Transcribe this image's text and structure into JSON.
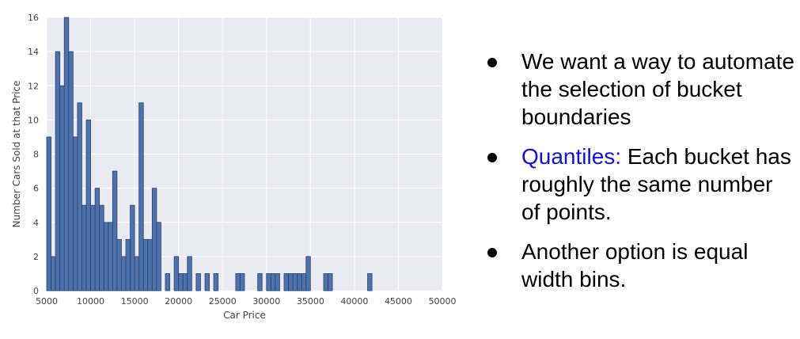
{
  "chart_data": {
    "type": "bar",
    "xlabel": "Car Price",
    "ylabel": "Number Cars Sold at that Price",
    "xlim": [
      5000,
      50000
    ],
    "ylim": [
      0,
      16
    ],
    "xticks": [
      5000,
      10000,
      15000,
      20000,
      25000,
      30000,
      35000,
      40000,
      45000,
      50000
    ],
    "yticks": [
      0,
      2,
      4,
      6,
      8,
      10,
      12,
      14,
      16
    ],
    "grid": true,
    "bin_width": 500,
    "bar_color": "#4c72b0",
    "background_color": "#eaeaf2",
    "bins": [
      {
        "x": 5000,
        "count": 9
      },
      {
        "x": 5500,
        "count": 2
      },
      {
        "x": 6000,
        "count": 14
      },
      {
        "x": 6500,
        "count": 12
      },
      {
        "x": 7000,
        "count": 16
      },
      {
        "x": 7500,
        "count": 14
      },
      {
        "x": 8000,
        "count": 9
      },
      {
        "x": 8500,
        "count": 11
      },
      {
        "x": 9000,
        "count": 5
      },
      {
        "x": 9500,
        "count": 10
      },
      {
        "x": 10000,
        "count": 5
      },
      {
        "x": 10500,
        "count": 6
      },
      {
        "x": 11000,
        "count": 5
      },
      {
        "x": 11500,
        "count": 4
      },
      {
        "x": 12000,
        "count": 4
      },
      {
        "x": 12500,
        "count": 7
      },
      {
        "x": 13000,
        "count": 3
      },
      {
        "x": 13500,
        "count": 2
      },
      {
        "x": 14000,
        "count": 3
      },
      {
        "x": 14500,
        "count": 5
      },
      {
        "x": 15000,
        "count": 2
      },
      {
        "x": 15500,
        "count": 11
      },
      {
        "x": 16000,
        "count": 3
      },
      {
        "x": 16500,
        "count": 3
      },
      {
        "x": 17000,
        "count": 6
      },
      {
        "x": 17500,
        "count": 4
      },
      {
        "x": 18500,
        "count": 1
      },
      {
        "x": 19500,
        "count": 2
      },
      {
        "x": 20000,
        "count": 1
      },
      {
        "x": 20500,
        "count": 1
      },
      {
        "x": 21000,
        "count": 2
      },
      {
        "x": 22000,
        "count": 1
      },
      {
        "x": 23000,
        "count": 1
      },
      {
        "x": 24000,
        "count": 1
      },
      {
        "x": 26500,
        "count": 1
      },
      {
        "x": 27000,
        "count": 1
      },
      {
        "x": 29000,
        "count": 1
      },
      {
        "x": 30000,
        "count": 1
      },
      {
        "x": 30500,
        "count": 1
      },
      {
        "x": 31000,
        "count": 1
      },
      {
        "x": 32000,
        "count": 1
      },
      {
        "x": 32500,
        "count": 1
      },
      {
        "x": 33000,
        "count": 1
      },
      {
        "x": 33500,
        "count": 1
      },
      {
        "x": 34000,
        "count": 1
      },
      {
        "x": 34500,
        "count": 2
      },
      {
        "x": 36500,
        "count": 1
      },
      {
        "x": 37000,
        "count": 1
      },
      {
        "x": 41500,
        "count": 1
      }
    ]
  },
  "bullets": [
    {
      "text": "We want a way to automate the selection of bucket boundaries"
    },
    {
      "highlight": "Quantiles:",
      "text": " Each bucket has roughly the same number of points."
    },
    {
      "text": "Another option is equal width bins."
    }
  ],
  "highlight_color": "#1111dd"
}
